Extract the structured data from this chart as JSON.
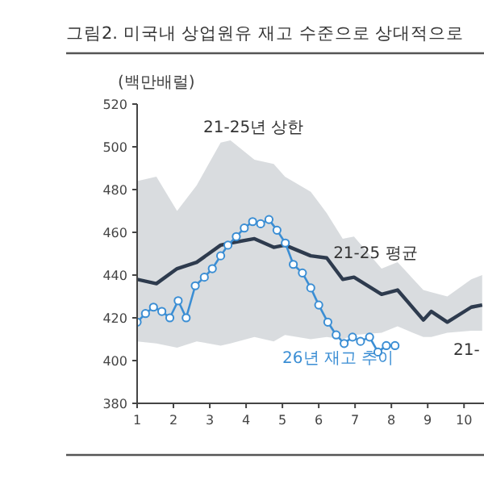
{
  "chart_data": {
    "type": "line",
    "title": "그림2.  미국내 상업원유 재고 수준으로 상대적으로",
    "ylabel": "(백만배럴)",
    "xlim": [
      1,
      10.55
    ],
    "ylim": [
      380,
      520
    ],
    "xticks": [
      1,
      2,
      3,
      4,
      5,
      6,
      7,
      8,
      9,
      10
    ],
    "yticks": [
      380,
      400,
      420,
      440,
      460,
      480,
      500,
      520
    ],
    "series": [
      {
        "name": "21-25 평균",
        "color": "#2e3b4e",
        "marker": "none",
        "x": [
          1.0,
          1.53,
          2.1,
          2.64,
          3.3,
          3.57,
          4.23,
          4.76,
          5.07,
          5.78,
          6.22,
          6.66,
          6.97,
          7.73,
          8.17,
          8.88,
          9.1,
          9.54,
          10.2,
          10.5
        ],
        "values": [
          438,
          436,
          443,
          446,
          454,
          455,
          457,
          453,
          454,
          449,
          448,
          438,
          439,
          431,
          433,
          419,
          423,
          418,
          425,
          426
        ],
        "upper": [
          484,
          486,
          470,
          482,
          502,
          503,
          494,
          492,
          486,
          479,
          469,
          457,
          458,
          443,
          446,
          433,
          432,
          430,
          438,
          440
        ],
        "lower": [
          409,
          408,
          406,
          409,
          407,
          408,
          411,
          409,
          412,
          410,
          411,
          410,
          412,
          413,
          416,
          411,
          411,
          413,
          414,
          414
        ]
      },
      {
        "name": "26년 재고 추이",
        "color": "#3b8ed4",
        "marker": "circle",
        "x": [
          1.0,
          1.23,
          1.45,
          1.68,
          1.9,
          2.13,
          2.35,
          2.6,
          2.85,
          3.07,
          3.3,
          3.5,
          3.73,
          3.95,
          4.18,
          4.4,
          4.63,
          4.85,
          5.08,
          5.3,
          5.55,
          5.78,
          6.0,
          6.25,
          6.48,
          6.7,
          6.93,
          7.15,
          7.4,
          7.63,
          7.86,
          8.1
        ],
        "values": [
          418,
          422,
          425,
          423,
          420,
          428,
          420,
          435,
          439,
          443,
          449,
          454,
          458,
          462,
          465,
          464,
          466,
          461,
          455,
          445,
          441,
          434,
          426,
          418,
          412,
          408,
          411,
          409,
          411,
          404,
          407,
          407
        ]
      }
    ],
    "annotations": [
      "21-25년 상한",
      "21-"
    ]
  }
}
